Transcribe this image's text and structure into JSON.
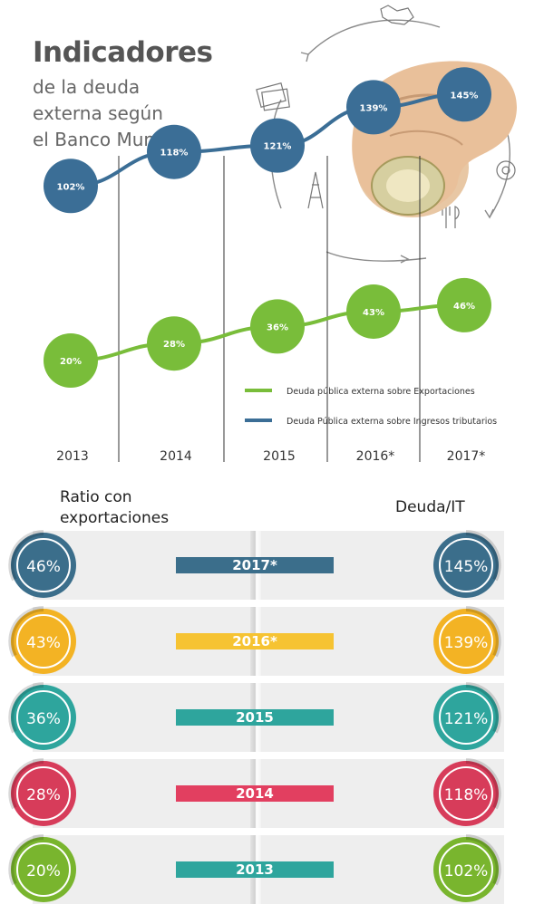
{
  "title": {
    "main": "Indicadores",
    "sub": "de la deuda\nexterna según\nel Banco Mundial"
  },
  "chart_data": {
    "type": "line",
    "categories": [
      "2013",
      "2014",
      "2015",
      "2016*",
      "2017*"
    ],
    "series": [
      {
        "name": "Deuda Pública externa sobre Ingresos tributarios",
        "values": [
          102,
          118,
          121,
          139,
          145
        ],
        "labels": [
          "102%",
          "118%",
          "121%",
          "139%",
          "145%"
        ],
        "color": "#3b6e96"
      },
      {
        "name": "Deuda pública externa sobre Exportaciones",
        "values": [
          20,
          28,
          36,
          43,
          46
        ],
        "labels": [
          "20%",
          "28%",
          "36%",
          "43%",
          "46%"
        ],
        "color": "#79bd3a"
      }
    ],
    "legend": [
      {
        "label": "Deuda pública externa sobre Exportaciones",
        "color": "#79bd3a"
      },
      {
        "label": "Deuda Pública externa sobre Ingresos tributarios",
        "color": "#3b6e96"
      }
    ],
    "legend_position": "bottom-right",
    "grid": false
  },
  "panel": {
    "left_header": "Ratio con exportaciones",
    "right_header": "Deuda/IT",
    "rows": [
      {
        "year": "2017*",
        "exports": "46%",
        "it": "145%",
        "color": "#3b6e8b",
        "bar_color": "#3b6e8b"
      },
      {
        "year": "2016*",
        "exports": "43%",
        "it": "139%",
        "color": "#f3b324",
        "bar_color": "#f6c332"
      },
      {
        "year": "2015",
        "exports": "36%",
        "it": "121%",
        "color": "#2ea59d",
        "bar_color": "#2ea59d"
      },
      {
        "year": "2014",
        "exports": "28%",
        "it": "118%",
        "color": "#d73c5a",
        "bar_color": "#e23f60"
      },
      {
        "year": "2013",
        "exports": "20%",
        "it": "102%",
        "color": "#79b52e",
        "bar_color": "#2ea59d"
      }
    ]
  }
}
